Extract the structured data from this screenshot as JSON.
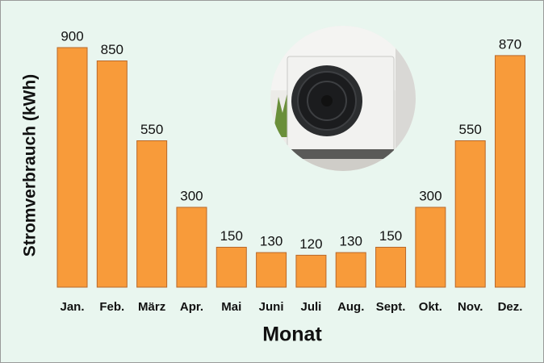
{
  "chart_data": {
    "type": "bar",
    "y_label": "Stromverbrauch (kWh)",
    "x_label": "Monat",
    "categories": [
      "Jan.",
      "Feb.",
      "März",
      "Apr.",
      "Mai",
      "Juni",
      "Juli",
      "Aug.",
      "Sept.",
      "Okt.",
      "Nov.",
      "Dez."
    ],
    "values": [
      900,
      850,
      550,
      300,
      150,
      130,
      120,
      130,
      150,
      300,
      550,
      870
    ],
    "color": "#f89b3a"
  }
}
